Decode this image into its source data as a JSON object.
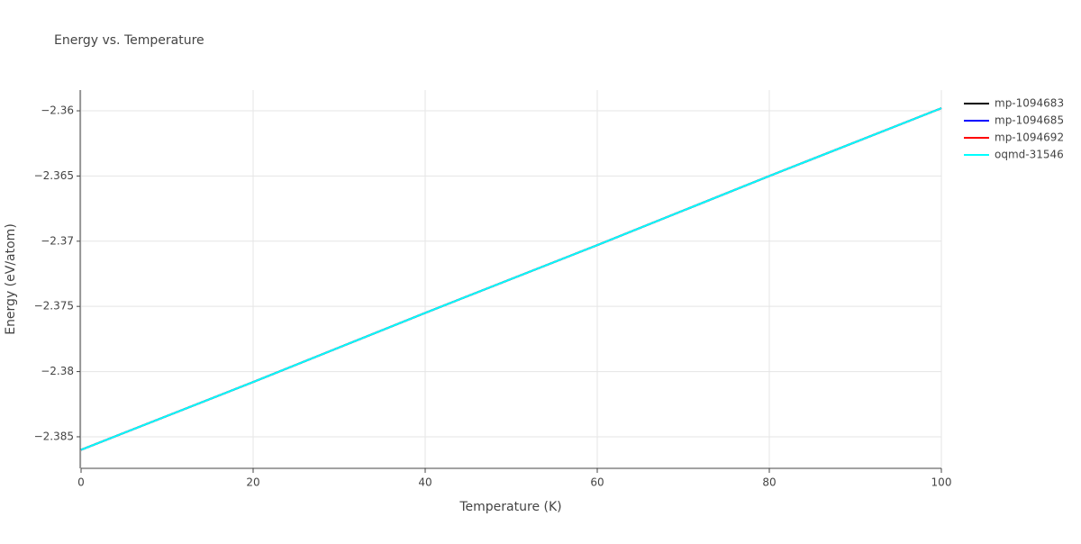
{
  "chart_data": {
    "type": "line",
    "title": "Energy vs. Temperature",
    "x_label": "Temperature (K)",
    "y_label": "Energy (eV/atom)",
    "x": [
      0,
      20,
      40,
      60,
      80,
      100
    ],
    "series": [
      {
        "name": "mp-1094683",
        "color": "#000000",
        "values": [
          -2.386,
          -2.3808,
          -2.3755,
          -2.3703,
          -2.365,
          -2.3598
        ]
      },
      {
        "name": "mp-1094685",
        "color": "#0000ff",
        "values": [
          -2.386,
          -2.3808,
          -2.3755,
          -2.3703,
          -2.365,
          -2.3598
        ]
      },
      {
        "name": "mp-1094692",
        "color": "#ff0000",
        "values": [
          -2.386,
          -2.3808,
          -2.3755,
          -2.3703,
          -2.365,
          -2.3598
        ]
      },
      {
        "name": "oqmd-31546",
        "color": "#00ffff",
        "values": [
          -2.386,
          -2.3808,
          -2.3755,
          -2.3703,
          -2.365,
          -2.3598
        ]
      }
    ],
    "xlim": [
      0,
      100
    ],
    "xticks": [
      0,
      20,
      40,
      60,
      80,
      100
    ],
    "ylim": [
      -2.38742,
      -2.35841
    ],
    "yticks": [
      {
        "value": -2.385,
        "label": "−2.385"
      },
      {
        "value": -2.38,
        "label": "−2.38"
      },
      {
        "value": -2.375,
        "label": "−2.375"
      },
      {
        "value": -2.37,
        "label": "−2.37"
      },
      {
        "value": -2.365,
        "label": "−2.365"
      },
      {
        "value": -2.36,
        "label": "−2.36"
      }
    ],
    "grid": true,
    "legend": "right"
  }
}
